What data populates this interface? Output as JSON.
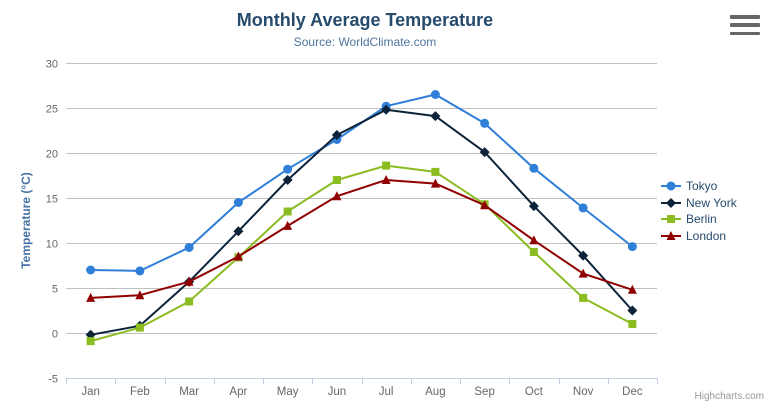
{
  "chart_data": {
    "type": "line",
    "title": "Monthly Average Temperature",
    "subtitle": "Source: WorldClimate.com",
    "categories": [
      "Jan",
      "Feb",
      "Mar",
      "Apr",
      "May",
      "Jun",
      "Jul",
      "Aug",
      "Sep",
      "Oct",
      "Nov",
      "Dec"
    ],
    "xlabel": "",
    "ylabel": "Temperature (°C)",
    "ylim": [
      -5,
      30
    ],
    "y_tick_interval": 5,
    "y_tick_labels": [
      "-5",
      "0",
      "5",
      "10",
      "15",
      "20",
      "25",
      "30"
    ],
    "grid": true,
    "legend_position": "right",
    "series": [
      {
        "name": "Tokyo",
        "color": "#2f7ed8",
        "marker": "circle",
        "values": [
          7.0,
          6.9,
          9.5,
          14.5,
          18.2,
          21.5,
          25.2,
          26.5,
          23.3,
          18.3,
          13.9,
          9.6
        ]
      },
      {
        "name": "New York",
        "color": "#0d233a",
        "marker": "diamond",
        "values": [
          -0.2,
          0.8,
          5.7,
          11.3,
          17.0,
          22.0,
          24.8,
          24.1,
          20.1,
          14.1,
          8.6,
          2.5
        ]
      },
      {
        "name": "Berlin",
        "color": "#8bbc21",
        "marker": "square",
        "values": [
          -0.9,
          0.6,
          3.5,
          8.4,
          13.5,
          17.0,
          18.6,
          17.9,
          14.3,
          9.0,
          3.9,
          1.0
        ]
      },
      {
        "name": "London",
        "color": "#910000",
        "marker": "triangle",
        "values": [
          3.9,
          4.2,
          5.7,
          8.5,
          11.9,
          15.2,
          17.0,
          16.6,
          14.2,
          10.3,
          6.6,
          4.8
        ]
      }
    ]
  },
  "credit": "Highcharts.com",
  "icons": {
    "context_menu": "hamburger-menu-icon"
  },
  "colors": {
    "title": "#274b6d",
    "subtitle": "#4d759e",
    "axis_title": "#4572a7",
    "axis_labels": "#666666",
    "grid_line": "#c0c0c0",
    "axis_line": "#c0d0e0",
    "legend_text": "#274b6d",
    "credit": "#999999",
    "menu_icon": "#666666",
    "background": "#ffffff"
  }
}
